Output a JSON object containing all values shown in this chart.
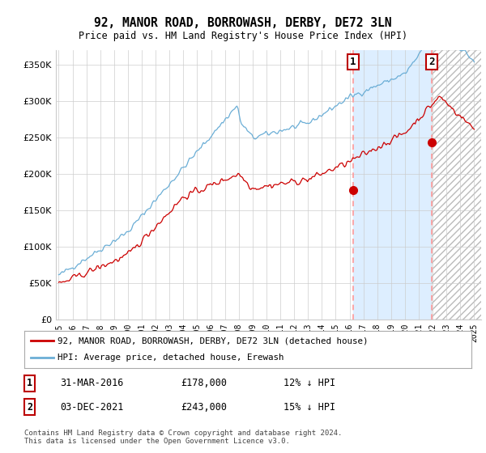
{
  "title": "92, MANOR ROAD, BORROWASH, DERBY, DE72 3LN",
  "subtitle": "Price paid vs. HM Land Registry's House Price Index (HPI)",
  "x_start_year": 1995,
  "x_end_year": 2025,
  "ylim": [
    0,
    370000
  ],
  "yticks": [
    0,
    50000,
    100000,
    150000,
    200000,
    250000,
    300000,
    350000
  ],
  "ytick_labels": [
    "£0",
    "£50K",
    "£100K",
    "£150K",
    "£200K",
    "£250K",
    "£300K",
    "£350K"
  ],
  "hpi_color": "#6baed6",
  "price_color": "#cc0000",
  "dashed_color": "#ff9999",
  "marker1_year": 2016.25,
  "marker1_price": 178000,
  "marker2_year": 2021.92,
  "marker2_price": 243000,
  "shade_color": "#ddeeff",
  "hatch_color": "#cccccc",
  "legend_line1": "92, MANOR ROAD, BORROWASH, DERBY, DE72 3LN (detached house)",
  "legend_line2": "HPI: Average price, detached house, Erewash",
  "table_row1": [
    "1",
    "31-MAR-2016",
    "£178,000",
    "12% ↓ HPI"
  ],
  "table_row2": [
    "2",
    "03-DEC-2021",
    "£243,000",
    "15% ↓ HPI"
  ],
  "footer": "Contains HM Land Registry data © Crown copyright and database right 2024.\nThis data is licensed under the Open Government Licence v3.0.",
  "bg_color": "#ffffff",
  "grid_color": "#cccccc"
}
